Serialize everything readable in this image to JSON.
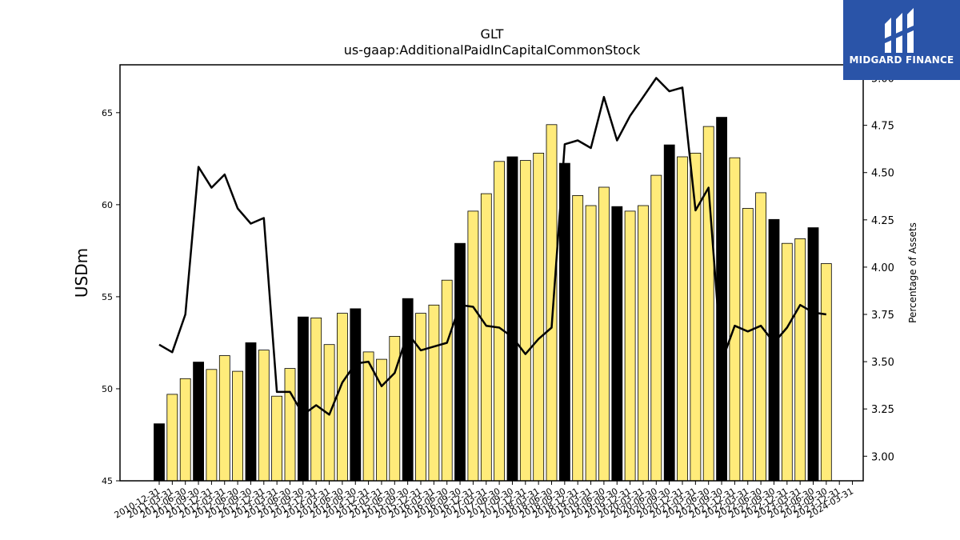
{
  "chart_data": {
    "type": "bar+line",
    "title": "GLT",
    "subtitle": "us-gaap:AdditionalPaidInCapitalCommonStock",
    "ylabel": "USDm",
    "y2label": "Percentage of Assets",
    "ylim": [
      45,
      67.6
    ],
    "y2lim": [
      2.87,
      5.07
    ],
    "yticks": [
      45,
      50,
      55,
      60,
      65
    ],
    "y2ticks": [
      "3.00",
      "3.25",
      "3.50",
      "3.75",
      "4.00",
      "4.25",
      "4.50",
      "4.75",
      "5.00"
    ],
    "categories": [
      "2010-12-31",
      "2011-03-31",
      "2011-06-30",
      "2011-09-30",
      "2011-12-31",
      "2012-03-31",
      "2012-06-30",
      "2012-09-30",
      "2012-12-31",
      "2013-03-31",
      "2013-06-30",
      "2013-09-30",
      "2013-12-31",
      "2014-03-31",
      "2014-06-30",
      "2014-09-30",
      "2014-12-31",
      "2015-03-31",
      "2015-06-30",
      "2015-09-30",
      "2015-12-31",
      "2016-03-31",
      "2016-06-30",
      "2016-09-30",
      "2016-12-31",
      "2017-03-31",
      "2017-06-30",
      "2017-09-30",
      "2017-12-31",
      "2018-03-31",
      "2018-06-30",
      "2018-09-30",
      "2018-12-31",
      "2019-03-31",
      "2019-06-30",
      "2019-09-30",
      "2019-12-31",
      "2020-03-31",
      "2020-06-30",
      "2020-09-30",
      "2020-12-31",
      "2021-03-31",
      "2021-06-30",
      "2021-09-30",
      "2021-12-31",
      "2022-03-31",
      "2022-06-30",
      "2022-09-30",
      "2022-12-31",
      "2023-03-31",
      "2023-06-30",
      "2023-09-30",
      "2023-12-31",
      "2024-03-31"
    ],
    "series": [
      {
        "type": "bar",
        "values": [
          48.1,
          49.7,
          50.55,
          51.45,
          51.05,
          51.8,
          50.95,
          52.5,
          52.1,
          49.6,
          51.1,
          53.9,
          53.85,
          52.4,
          54.1,
          54.35,
          52.0,
          51.6,
          52.85,
          54.9,
          54.1,
          54.55,
          55.9,
          57.9,
          59.65,
          60.6,
          62.35,
          62.6,
          62.4,
          62.8,
          64.35,
          62.25,
          60.5,
          59.95,
          60.95,
          59.9,
          59.65,
          59.95,
          61.6,
          63.25,
          62.6,
          62.8,
          64.25,
          64.75,
          62.55,
          59.8,
          60.65,
          59.2,
          57.9,
          58.15,
          58.75,
          56.8,
          null,
          null
        ],
        "highlight": [
          true,
          false,
          false,
          true,
          false,
          false,
          false,
          true,
          false,
          false,
          false,
          true,
          false,
          false,
          false,
          true,
          false,
          false,
          false,
          true,
          false,
          false,
          false,
          true,
          false,
          false,
          false,
          true,
          false,
          false,
          false,
          true,
          false,
          false,
          false,
          true,
          false,
          false,
          false,
          true,
          false,
          false,
          false,
          true,
          false,
          false,
          false,
          true,
          false,
          false,
          true,
          false,
          false,
          false
        ],
        "color": "#ffeb7a",
        "highlight_color": "#000000"
      },
      {
        "type": "line",
        "axis": "right",
        "values": [
          3.59,
          3.55,
          3.75,
          4.53,
          4.42,
          4.49,
          4.31,
          4.23,
          4.26,
          3.34,
          3.34,
          3.22,
          3.27,
          3.22,
          3.39,
          3.49,
          3.5,
          3.37,
          3.44,
          3.65,
          3.56,
          3.58,
          3.6,
          3.8,
          3.79,
          3.69,
          3.68,
          3.63,
          3.54,
          3.62,
          3.68,
          4.65,
          4.67,
          4.63,
          4.9,
          4.67,
          4.8,
          4.9,
          5.0,
          4.93,
          4.95,
          4.3,
          4.42,
          3.5,
          3.69,
          3.66,
          3.69,
          3.6,
          3.68,
          3.8,
          3.76,
          3.75,
          null,
          null
        ],
        "color": "#000000"
      }
    ],
    "grid": false,
    "legend": "none"
  },
  "logo": {
    "text": "MIDGARD FINANCE"
  }
}
